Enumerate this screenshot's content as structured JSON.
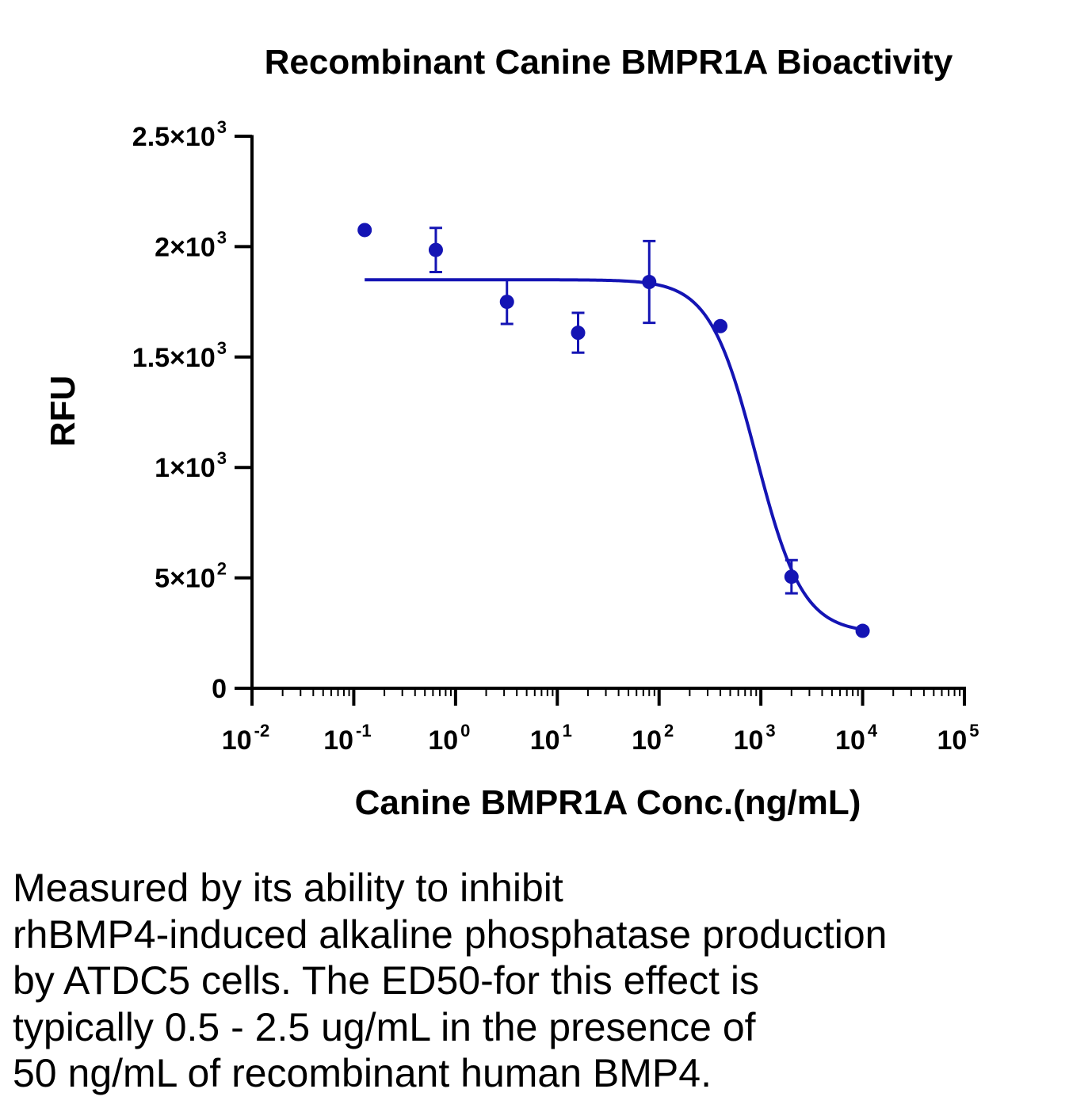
{
  "chart_data": {
    "type": "scatter",
    "title": "Recombinant Canine BMPR1A Bioactivity",
    "xlabel": "Canine BMPR1A Conc.(ng/mL)",
    "ylabel": "RFU",
    "xscale": "log",
    "xlim": [
      0.01,
      100000
    ],
    "ylim": [
      0,
      2500
    ],
    "grid": false,
    "legend": "none",
    "color": "#1414b4",
    "x_ticks": [
      {
        "base": "10",
        "exp": "-2",
        "value": 0.01
      },
      {
        "base": "10",
        "exp": "-1",
        "value": 0.1
      },
      {
        "base": "10",
        "exp": "0",
        "value": 1
      },
      {
        "base": "10",
        "exp": "1",
        "value": 10
      },
      {
        "base": "10",
        "exp": "2",
        "value": 100
      },
      {
        "base": "10",
        "exp": "3",
        "value": 1000
      },
      {
        "base": "10",
        "exp": "4",
        "value": 10000
      },
      {
        "base": "10",
        "exp": "5",
        "value": 100000
      }
    ],
    "y_ticks": [
      {
        "mantissa": "0",
        "exp": "",
        "value": 0
      },
      {
        "mantissa": "5×10",
        "exp": "2",
        "value": 500
      },
      {
        "mantissa": "1×10",
        "exp": "3",
        "value": 1000
      },
      {
        "mantissa": "1.5×10",
        "exp": "3",
        "value": 1500
      },
      {
        "mantissa": "2×10",
        "exp": "3",
        "value": 2000
      },
      {
        "mantissa": "2.5×10",
        "exp": "3",
        "value": 2500
      }
    ],
    "points": [
      {
        "x": 0.128,
        "y": 2075,
        "err": 0
      },
      {
        "x": 0.64,
        "y": 1985,
        "err": 100
      },
      {
        "x": 3.2,
        "y": 1750,
        "err": 100
      },
      {
        "x": 16,
        "y": 1610,
        "err": 90
      },
      {
        "x": 80,
        "y": 1840,
        "err": 185
      },
      {
        "x": 400,
        "y": 1640,
        "err": 0
      },
      {
        "x": 2000,
        "y": 505,
        "err": 75
      },
      {
        "x": 10000,
        "y": 260,
        "err": 0
      }
    ],
    "fit": {
      "model": "4PL",
      "top": 1850,
      "bottom": 250,
      "ec50": 900,
      "hill": 1.9,
      "x_range": [
        0.128,
        10000
      ]
    }
  },
  "caption": "Measured by its ability to inhibit\nrhBMP4-induced alkaline phosphatase production\nby ATDC5 cells. The ED50-for this effect is\ntypically 0.5 - 2.5 ug/mL in the presence of\n50 ng/mL of recombinant human BMP4."
}
